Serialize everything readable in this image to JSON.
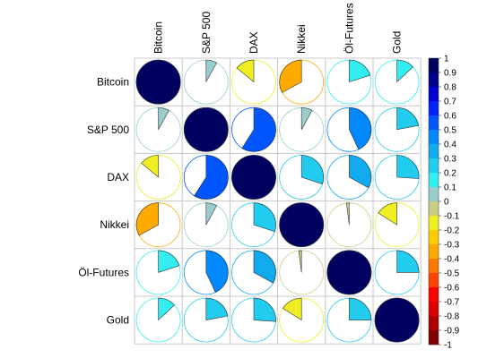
{
  "chart_data": {
    "type": "heatmap",
    "variables": [
      "Bitcoin",
      "S&P 500",
      "DAX",
      "Nikkei",
      "Öl-Futures",
      "Gold"
    ],
    "matrix": [
      [
        1.0,
        0.08,
        -0.14,
        -0.33,
        0.2,
        0.13
      ],
      [
        0.08,
        1.0,
        0.59,
        0.08,
        0.43,
        0.22
      ],
      [
        -0.14,
        0.59,
        1.0,
        0.3,
        0.33,
        0.26
      ],
      [
        -0.33,
        0.08,
        0.3,
        1.0,
        -0.02,
        -0.16
      ],
      [
        0.2,
        0.43,
        0.33,
        -0.02,
        1.0,
        0.25
      ],
      [
        0.13,
        0.22,
        0.26,
        -0.16,
        0.25,
        1.0
      ]
    ],
    "colorbar": {
      "min": -1,
      "max": 1,
      "ticks": [
        "1",
        "0.9",
        "0.8",
        "0.7",
        "0.6",
        "0.5",
        "0.4",
        "0.3",
        "0.2",
        "0.1",
        "0",
        "-0.1",
        "-0.2",
        "-0.3",
        "-0.4",
        "-0.5",
        "-0.6",
        "-0.7",
        "-0.8",
        "-0.9",
        "-1"
      ],
      "colors": [
        "#000060",
        "#00008a",
        "#0000d0",
        "#0022ff",
        "#0055ff",
        "#0088ff",
        "#11aaee",
        "#22ccee",
        "#33eeee",
        "#99cccc",
        "#cccc88",
        "#eeee22",
        "#ffcc00",
        "#ffaa00",
        "#ff7700",
        "#ff4400",
        "#ff0000",
        "#dd0000",
        "#aa0000",
        "#800000"
      ]
    },
    "grid": true,
    "legend": "right"
  }
}
